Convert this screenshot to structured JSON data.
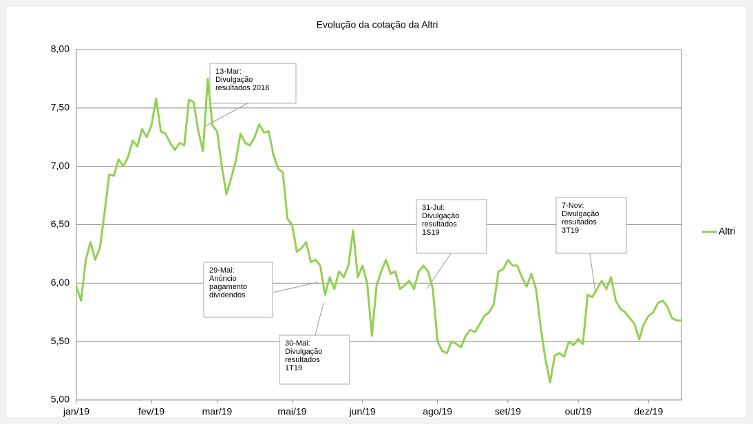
{
  "chart_data": {
    "type": "line",
    "title": "Evolução da cotação da Altri",
    "categories": [
      "jan/19",
      null,
      null,
      null,
      null,
      null,
      null,
      null,
      null,
      null,
      null,
      null,
      null,
      null,
      null,
      null,
      "fev/19",
      null,
      null,
      null,
      null,
      null,
      null,
      null,
      null,
      null,
      null,
      null,
      null,
      null,
      "mar/19",
      null,
      null,
      null,
      null,
      null,
      null,
      null,
      null,
      null,
      null,
      null,
      null,
      null,
      null,
      null,
      "mai/19",
      null,
      null,
      null,
      null,
      null,
      null,
      null,
      null,
      null,
      null,
      null,
      null,
      null,
      null,
      "jun/19",
      null,
      null,
      null,
      null,
      null,
      null,
      null,
      null,
      null,
      null,
      null,
      null,
      null,
      null,
      null,
      "ago/19",
      null,
      null,
      null,
      null,
      null,
      null,
      null,
      null,
      null,
      null,
      null,
      null,
      null,
      null,
      "set/19",
      null,
      null,
      null,
      null,
      null,
      null,
      null,
      null,
      null,
      null,
      null,
      null,
      null,
      null,
      "out/19",
      null,
      null,
      null,
      null,
      null,
      null,
      null,
      null,
      null,
      null,
      null,
      null,
      null,
      null,
      "dez/19",
      null,
      null,
      null,
      null,
      null,
      null,
      null
    ],
    "series": [
      {
        "name": "Altri",
        "color": "#92d050",
        "values": [
          5.97,
          5.85,
          6.2,
          6.35,
          6.2,
          6.3,
          6.6,
          6.93,
          6.92,
          7.06,
          7.0,
          7.08,
          7.22,
          7.17,
          7.32,
          7.25,
          7.35,
          7.58,
          7.3,
          7.28,
          7.2,
          7.14,
          7.2,
          7.18,
          7.57,
          7.55,
          7.3,
          7.13,
          7.75,
          7.35,
          7.3,
          7.0,
          6.76,
          6.9,
          7.05,
          7.28,
          7.2,
          7.18,
          7.25,
          7.36,
          7.29,
          7.3,
          7.1,
          6.98,
          6.95,
          6.55,
          6.5,
          6.27,
          6.3,
          6.35,
          6.18,
          6.2,
          6.15,
          5.9,
          6.05,
          5.95,
          6.1,
          6.05,
          6.15,
          6.45,
          6.05,
          6.15,
          6.0,
          5.55,
          5.98,
          6.1,
          6.2,
          6.08,
          6.1,
          5.95,
          5.98,
          6.02,
          5.95,
          6.1,
          6.15,
          6.1,
          5.95,
          5.5,
          5.42,
          5.4,
          5.5,
          5.48,
          5.45,
          5.55,
          5.6,
          5.58,
          5.65,
          5.72,
          5.75,
          5.82,
          6.1,
          6.12,
          6.2,
          6.15,
          6.15,
          6.05,
          5.97,
          6.08,
          5.95,
          5.62,
          5.35,
          5.15,
          5.38,
          5.4,
          5.37,
          5.5,
          5.47,
          5.52,
          5.48,
          5.9,
          5.88,
          5.95,
          6.02,
          5.95,
          6.05,
          5.85,
          5.78,
          5.75,
          5.7,
          5.65,
          5.52,
          5.65,
          5.72,
          5.75,
          5.83,
          5.85,
          5.8,
          5.7,
          5.68,
          5.68
        ]
      }
    ],
    "ylim": [
      5,
      8
    ],
    "yticks": [
      {
        "value": 5,
        "label": "5,00"
      },
      {
        "value": 5.5,
        "label": "5,50"
      },
      {
        "value": 6,
        "label": "6,00"
      },
      {
        "value": 6.5,
        "label": "6,50"
      },
      {
        "value": 7,
        "label": "7,00"
      },
      {
        "value": 7.5,
        "label": "7,50"
      },
      {
        "value": 8,
        "label": "8,00"
      }
    ],
    "grid": true,
    "legend": "right",
    "annotations": [
      {
        "lines": [
          "13-Mar:",
          "Divulgação",
          "resultados 2018"
        ]
      },
      {
        "lines": [
          "29-Mai:",
          "Anúncio",
          "pagamento",
          "dividendos"
        ]
      },
      {
        "lines": [
          "30-Mai:",
          "Divulgação",
          "resultados",
          "1T19"
        ]
      },
      {
        "lines": [
          "31-Jul:",
          "Divulgação",
          "resultados",
          "1S19"
        ]
      },
      {
        "lines": [
          "7-Nov:",
          "Divulgação",
          "resultados",
          "3T19"
        ]
      }
    ]
  }
}
